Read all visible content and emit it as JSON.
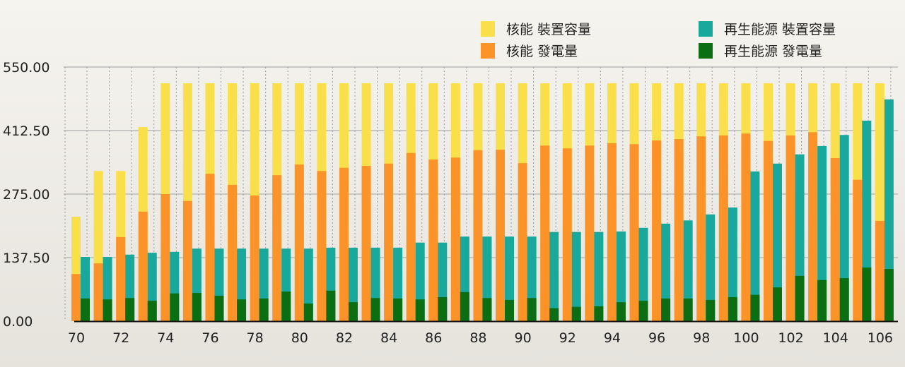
{
  "chart_data": {
    "type": "bar",
    "title": "",
    "xlabel": "",
    "ylabel": "",
    "ylim": [
      0,
      550
    ],
    "yticks": [
      "0.00",
      "137.50",
      "275.00",
      "412.50",
      "550.00"
    ],
    "ytick_values": [
      0,
      137.5,
      275,
      412.5,
      550
    ],
    "categories": [
      "70",
      "71",
      "72",
      "73",
      "74",
      "75",
      "76",
      "77",
      "78",
      "79",
      "80",
      "81",
      "82",
      "83",
      "84",
      "85",
      "86",
      "87",
      "88",
      "89",
      "90",
      "91",
      "92",
      "93",
      "94",
      "95",
      "96",
      "97",
      "98",
      "99",
      "100",
      "101",
      "102",
      "103",
      "104",
      "105",
      "106"
    ],
    "xtick_labels": [
      "70",
      "72",
      "74",
      "76",
      "78",
      "80",
      "82",
      "84",
      "86",
      "88",
      "90",
      "92",
      "94",
      "96",
      "98",
      "100",
      "102",
      "104",
      "106"
    ],
    "legend_position": "top-right",
    "series": [
      {
        "name": "核能 裝置容量",
        "color": "#f9e04a",
        "group": "nuclear",
        "values": [
          226,
          325,
          325,
          420,
          515,
          515,
          515,
          515,
          515,
          515,
          515,
          515,
          515,
          515,
          515,
          515,
          515,
          515,
          515,
          515,
          515,
          515,
          515,
          515,
          515,
          515,
          515,
          515,
          515,
          515,
          515,
          515,
          515,
          515,
          515,
          515,
          515
        ]
      },
      {
        "name": "核能 發電量",
        "color": "#fb9329",
        "group": "nuclear",
        "values": [
          102,
          125,
          182,
          237,
          275,
          260,
          319,
          295,
          272,
          316,
          339,
          325,
          332,
          336,
          341,
          364,
          350,
          354,
          370,
          371,
          342,
          380,
          374,
          380,
          385,
          383,
          391,
          394,
          400,
          402,
          406,
          390,
          402,
          409,
          353,
          306,
          217
        ]
      },
      {
        "name": "再生能源 裝置容量",
        "color": "#19a99c",
        "group": "renewable",
        "values": [
          139,
          139,
          144,
          148,
          150,
          157,
          157,
          157,
          157,
          157,
          157,
          159,
          159,
          159,
          159,
          170,
          170,
          183,
          183,
          183,
          183,
          193,
          193,
          193,
          194,
          202,
          211,
          218,
          231,
          246,
          324,
          341,
          361,
          379,
          403,
          434,
          480
        ]
      },
      {
        "name": "再生能源 發電量",
        "color": "#0c6e12",
        "group": "renewable",
        "values": [
          49,
          47,
          50,
          44,
          60,
          61,
          55,
          47,
          49,
          64,
          38,
          66,
          41,
          50,
          49,
          47,
          52,
          63,
          50,
          46,
          50,
          28,
          31,
          32,
          41,
          44,
          49,
          49,
          46,
          52,
          57,
          73,
          98,
          89,
          93,
          116,
          113
        ]
      }
    ]
  }
}
